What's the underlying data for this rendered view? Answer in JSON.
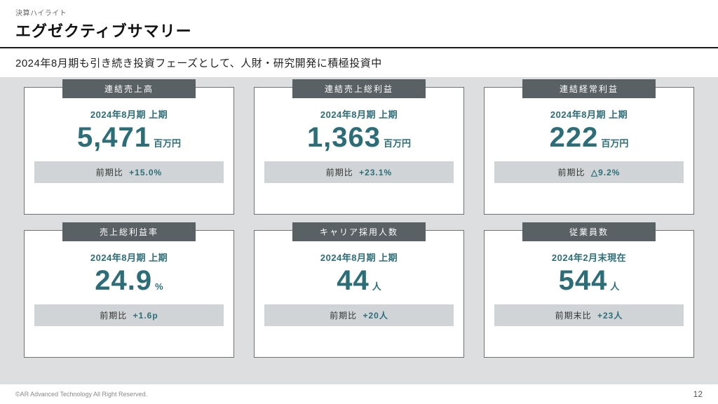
{
  "header": {
    "breadcrumb": "決算ハイライト",
    "title": "エグゼクティブサマリー"
  },
  "subtitle": "2024年8月期も引き続き投資フェーズとして、人財・研究開発に積極投資中",
  "cards": [
    {
      "tab": "連結売上高",
      "period": "2024年8月期 上期",
      "value": "5,471",
      "unit": "百万円",
      "compare_label": "前期比",
      "compare_value": "+15.0%"
    },
    {
      "tab": "連結売上総利益",
      "period": "2024年8月期 上期",
      "value": "1,363",
      "unit": "百万円",
      "compare_label": "前期比",
      "compare_value": "+23.1%"
    },
    {
      "tab": "連結経常利益",
      "period": "2024年8月期 上期",
      "value": "222",
      "unit": "百万円",
      "compare_label": "前期比",
      "compare_value": "△9.2%"
    },
    {
      "tab": "売上総利益率",
      "period": "2024年8月期 上期",
      "value": "24.9",
      "unit": "%",
      "compare_label": "前期比",
      "compare_value": "+1.6p"
    },
    {
      "tab": "キャリア採用人数",
      "period": "2024年8月期 上期",
      "value": "44",
      "unit": "人",
      "compare_label": "前期比",
      "compare_value": "+20人"
    },
    {
      "tab": "従業員数",
      "period": "2024年2月末現在",
      "value": "544",
      "unit": "人",
      "compare_label": "前期末比",
      "compare_value": "+23人"
    }
  ],
  "footer": {
    "copyright": "©AR Advanced Technology All Right Reserved.",
    "page": "12"
  },
  "styling": {
    "page_bg": "#dcdee0",
    "header_bg": "#ffffff",
    "card_bg": "#ffffff",
    "card_border": "#707070",
    "tab_bg": "#5a6164",
    "tab_color": "#ffffff",
    "accent_color": "#2c6e78",
    "compare_bg": "#d0d4d6",
    "title_color": "#111111",
    "value_fontsize": 40,
    "title_fontsize": 22,
    "grid_cols": 3,
    "grid_rows": 2
  }
}
